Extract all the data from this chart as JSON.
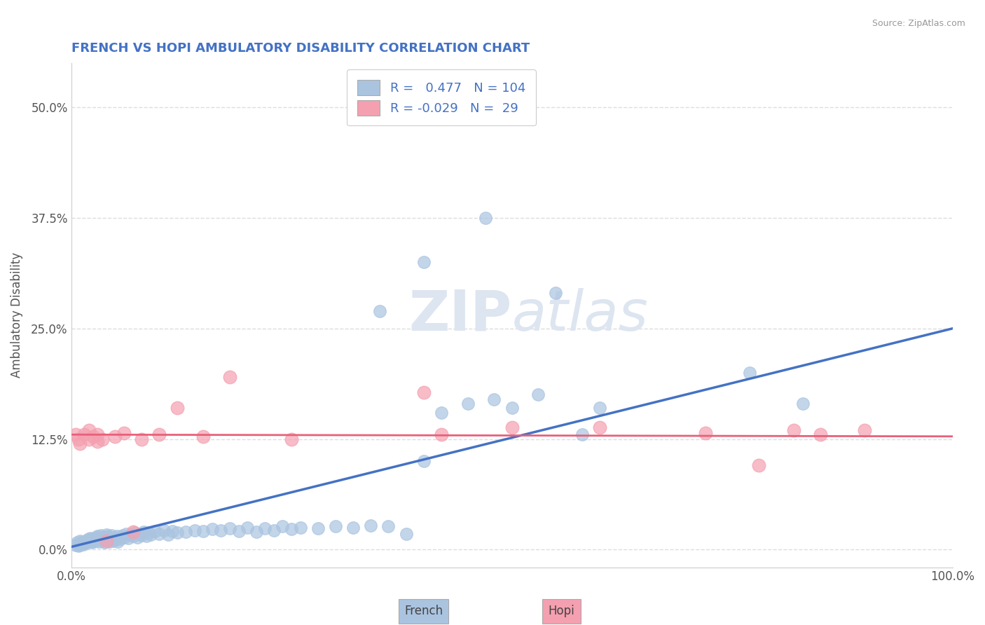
{
  "title": "FRENCH VS HOPI AMBULATORY DISABILITY CORRELATION CHART",
  "source": "Source: ZipAtlas.com",
  "ylabel": "Ambulatory Disability",
  "xlim": [
    0.0,
    1.0
  ],
  "ylim": [
    -0.02,
    0.55
  ],
  "yticks": [
    0.0,
    0.125,
    0.25,
    0.375,
    0.5
  ],
  "ytick_labels": [
    "0.0%",
    "12.5%",
    "25.0%",
    "37.5%",
    "50.0%"
  ],
  "xtick_labels": [
    "0.0%",
    "100.0%"
  ],
  "r_french": 0.477,
  "n_french": 104,
  "r_hopi": -0.029,
  "n_hopi": 29,
  "french_color": "#aac4e0",
  "hopi_color": "#f4a0b0",
  "french_line_color": "#4472c4",
  "hopi_line_color": "#e8607a",
  "watermark_color": "#dde5f0",
  "title_color": "#4472c4",
  "source_color": "#999999",
  "ylabel_color": "#555555",
  "tick_color": "#555555",
  "grid_color": "#dddddd",
  "french_x": [
    0.005,
    0.007,
    0.008,
    0.009,
    0.01,
    0.01,
    0.012,
    0.013,
    0.014,
    0.015,
    0.016,
    0.017,
    0.018,
    0.019,
    0.02,
    0.02,
    0.021,
    0.022,
    0.023,
    0.024,
    0.025,
    0.026,
    0.027,
    0.028,
    0.03,
    0.03,
    0.031,
    0.032,
    0.033,
    0.034,
    0.035,
    0.036,
    0.037,
    0.038,
    0.04,
    0.04,
    0.041,
    0.042,
    0.043,
    0.044,
    0.045,
    0.046,
    0.047,
    0.048,
    0.05,
    0.051,
    0.052,
    0.053,
    0.055,
    0.056,
    0.058,
    0.06,
    0.062,
    0.065,
    0.068,
    0.07,
    0.072,
    0.075,
    0.078,
    0.08,
    0.082,
    0.085,
    0.088,
    0.09,
    0.095,
    0.1,
    0.105,
    0.11,
    0.115,
    0.12,
    0.13,
    0.14,
    0.15,
    0.16,
    0.17,
    0.18,
    0.19,
    0.2,
    0.21,
    0.22,
    0.23,
    0.24,
    0.25,
    0.26,
    0.28,
    0.3,
    0.32,
    0.34,
    0.36,
    0.38,
    0.4,
    0.42,
    0.45,
    0.48,
    0.5,
    0.53,
    0.58,
    0.6,
    0.77,
    0.83,
    0.47,
    0.35,
    0.4,
    0.55
  ],
  "french_y": [
    0.005,
    0.008,
    0.004,
    0.006,
    0.005,
    0.01,
    0.007,
    0.009,
    0.006,
    0.008,
    0.007,
    0.01,
    0.008,
    0.011,
    0.009,
    0.012,
    0.01,
    0.013,
    0.008,
    0.011,
    0.009,
    0.012,
    0.01,
    0.014,
    0.011,
    0.015,
    0.009,
    0.013,
    0.011,
    0.016,
    0.012,
    0.01,
    0.014,
    0.008,
    0.013,
    0.017,
    0.011,
    0.015,
    0.009,
    0.013,
    0.012,
    0.016,
    0.01,
    0.014,
    0.013,
    0.011,
    0.015,
    0.009,
    0.014,
    0.012,
    0.016,
    0.014,
    0.018,
    0.013,
    0.017,
    0.015,
    0.019,
    0.014,
    0.018,
    0.016,
    0.02,
    0.015,
    0.019,
    0.017,
    0.021,
    0.018,
    0.022,
    0.017,
    0.021,
    0.019,
    0.02,
    0.022,
    0.021,
    0.023,
    0.022,
    0.024,
    0.021,
    0.025,
    0.02,
    0.024,
    0.022,
    0.026,
    0.023,
    0.025,
    0.024,
    0.026,
    0.025,
    0.027,
    0.026,
    0.018,
    0.1,
    0.155,
    0.165,
    0.17,
    0.16,
    0.175,
    0.13,
    0.16,
    0.2,
    0.165,
    0.375,
    0.27,
    0.325,
    0.29
  ],
  "hopi_x": [
    0.005,
    0.008,
    0.01,
    0.015,
    0.02,
    0.02,
    0.025,
    0.03,
    0.03,
    0.035,
    0.04,
    0.05,
    0.06,
    0.07,
    0.08,
    0.1,
    0.12,
    0.15,
    0.18,
    0.25,
    0.4,
    0.42,
    0.5,
    0.6,
    0.72,
    0.78,
    0.82,
    0.85,
    0.9
  ],
  "hopi_y": [
    0.13,
    0.125,
    0.12,
    0.13,
    0.125,
    0.135,
    0.128,
    0.122,
    0.13,
    0.125,
    0.01,
    0.128,
    0.132,
    0.02,
    0.125,
    0.13,
    0.16,
    0.128,
    0.195,
    0.125,
    0.178,
    0.13,
    0.138,
    0.138,
    0.132,
    0.095,
    0.135,
    0.13,
    0.135
  ],
  "french_line_x": [
    0.0,
    1.0
  ],
  "french_line_y": [
    0.003,
    0.25
  ],
  "hopi_line_y": [
    0.13,
    0.128
  ]
}
